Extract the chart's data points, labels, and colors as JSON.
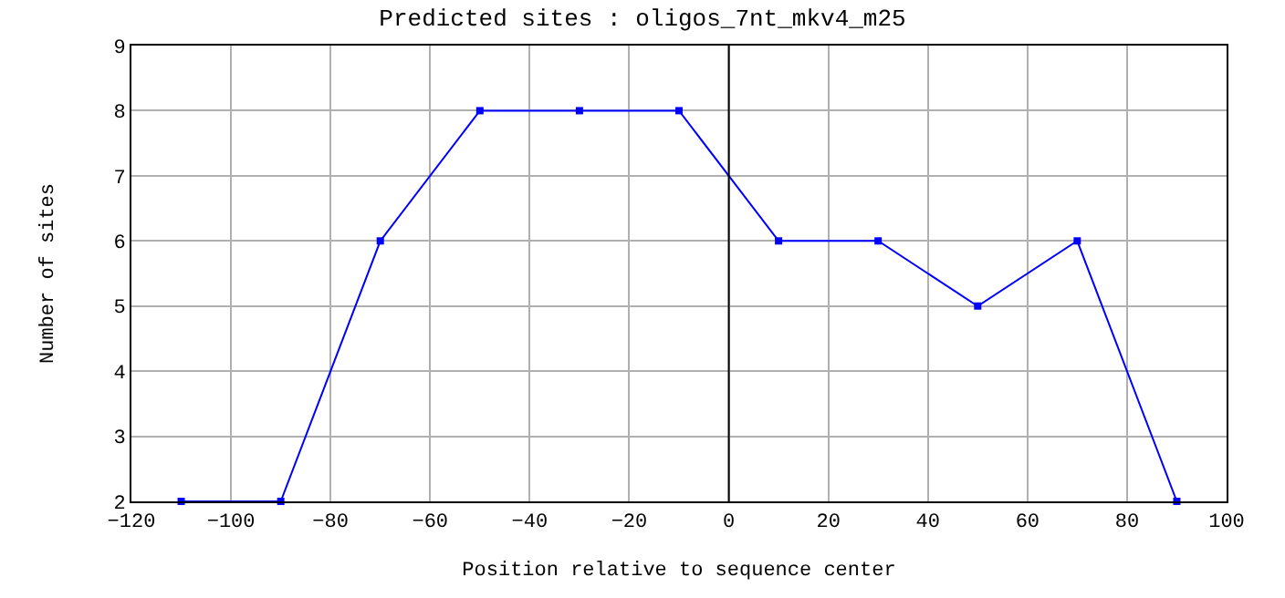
{
  "chart_data": {
    "type": "line",
    "title": "Predicted sites : oligos_7nt_mkv4_m25",
    "xlabel": "Position relative to sequence center",
    "ylabel": "Number of sites",
    "x": [
      -110,
      -90,
      -70,
      -50,
      -30,
      -10,
      10,
      30,
      50,
      70,
      90
    ],
    "series": [
      {
        "color": "#0000ff",
        "values": [
          2,
          2,
          6,
          8,
          8,
          8,
          6,
          6,
          5,
          6,
          2
        ]
      }
    ],
    "xlim": [
      -120,
      100
    ],
    "xticks": [
      -120,
      -100,
      -80,
      -60,
      -40,
      -20,
      0,
      20,
      40,
      60,
      80,
      100
    ],
    "ylim": [
      2,
      9
    ],
    "yticks": [
      2,
      3,
      4,
      5,
      6,
      7,
      8,
      9
    ],
    "ref_lines": [
      {
        "axis": "x",
        "value": 0,
        "color": "#000000"
      }
    ],
    "grid": true,
    "legend": false,
    "marker": "square",
    "line_style": "solid"
  }
}
